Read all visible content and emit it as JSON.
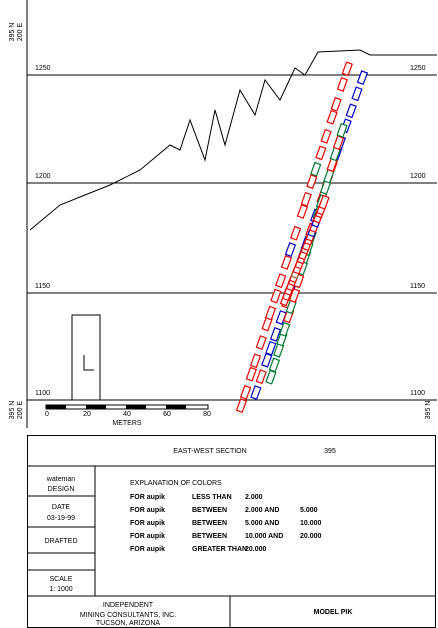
{
  "drawing": {
    "section": "395 N",
    "easting": "200 E",
    "elevations": [
      1250,
      1200,
      1150,
      1100
    ],
    "scale": {
      "ticks": [
        "0",
        "20",
        "40",
        "60",
        "80"
      ],
      "unit": "METERS"
    }
  },
  "title_block": {
    "title": "EAST-WEST SECTION",
    "section_number": "395",
    "designer": "wateman",
    "design_label": "DESIGN",
    "date_label": "DATE",
    "date": "03-19-99",
    "drafted_label": "DRAFTED",
    "scale_label": "SCALE",
    "scale": "1: 1000",
    "legend": {
      "title": "EXPLANATION OF COLORS",
      "rows": [
        {
          "parts": [
            "FOR aupik",
            "LESS THAN",
            "2.000"
          ],
          "color": "#9900cc"
        },
        {
          "parts": [
            "FOR aupik",
            "BETWEEN",
            "2.000 AND",
            "5.000"
          ],
          "color": "#996633"
        },
        {
          "parts": [
            "FOR aupik",
            "BETWEEN",
            "5.000 AND",
            "10.000"
          ],
          "color": "#007a33"
        },
        {
          "parts": [
            "FOR aupik",
            "BETWEEN",
            "10.000 AND",
            "20.000"
          ],
          "color": "#ee0000"
        },
        {
          "parts": [
            "FOR aupik",
            "GREATER THAN",
            "20.000"
          ],
          "color": "#0000cc"
        }
      ]
    },
    "company": "INDEPENDENT",
    "company_sub": "MINING CONSULTANTS, INC.",
    "company_city": "TUCSON, ARIZONA",
    "model": "MODEL PIK"
  }
}
